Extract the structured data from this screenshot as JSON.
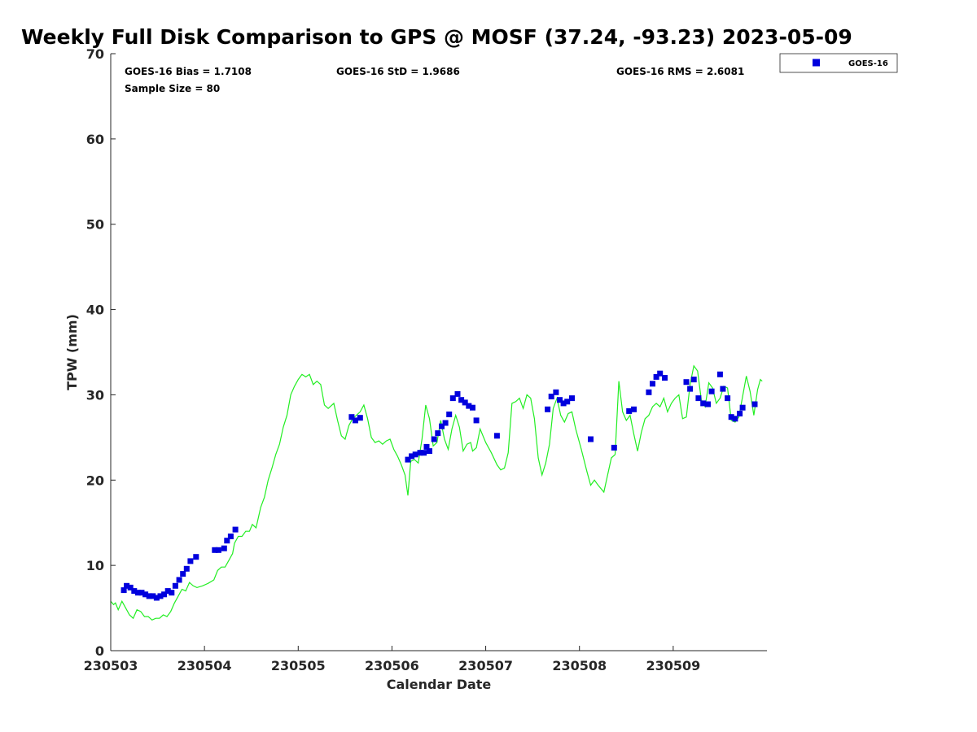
{
  "chart_data": {
    "type": "scatter",
    "title": "Weekly Full Disk Comparison to GPS @ MOSF (37.24, -93.23) 2023-05-09",
    "xlabel": "Calendar Date",
    "ylabel": "TPW (mm)",
    "xlim": [
      230503,
      230510
    ],
    "ylim": [
      0,
      70
    ],
    "x_ticks": [
      230503,
      230504,
      230505,
      230506,
      230507,
      230508,
      230509
    ],
    "x_tick_labels": [
      "230503",
      "230504",
      "230505",
      "230506",
      "230507",
      "230508",
      "230509"
    ],
    "y_ticks": [
      0,
      10,
      20,
      30,
      40,
      50,
      60,
      70
    ],
    "y_tick_labels": [
      "0",
      "10",
      "20",
      "30",
      "40",
      "50",
      "60",
      "70"
    ],
    "grid": false,
    "legend_position": "top-right (outside plot)",
    "stats": {
      "bias": "GOES-16 Bias = 1.7108",
      "std": "GOES-16 StD = 1.9686",
      "rms": "GOES-16 RMS = 2.6081",
      "sample": "Sample Size = 80"
    },
    "colors": {
      "goes": "#0000dd",
      "gps": "#22ee22",
      "axis": "#262626"
    },
    "series": [
      {
        "name": "GOES-16",
        "legend_label": "GOES-16",
        "kind": "scatter",
        "color": "#0000dd",
        "points": [
          [
            230503.14,
            7.1
          ],
          [
            230503.17,
            7.6
          ],
          [
            230503.21,
            7.4
          ],
          [
            230503.25,
            7.0
          ],
          [
            230503.29,
            6.8
          ],
          [
            230503.33,
            6.8
          ],
          [
            230503.37,
            6.6
          ],
          [
            230503.41,
            6.4
          ],
          [
            230503.45,
            6.4
          ],
          [
            230503.49,
            6.2
          ],
          [
            230503.53,
            6.4
          ],
          [
            230503.57,
            6.6
          ],
          [
            230503.61,
            7.0
          ],
          [
            230503.65,
            6.8
          ],
          [
            230503.69,
            7.6
          ],
          [
            230503.73,
            8.3
          ],
          [
            230503.77,
            9.0
          ],
          [
            230503.81,
            9.6
          ],
          [
            230503.85,
            10.5
          ],
          [
            230503.91,
            11.0
          ],
          [
            230504.11,
            11.8
          ],
          [
            230504.15,
            11.8
          ],
          [
            230504.21,
            12.0
          ],
          [
            230504.24,
            12.9
          ],
          [
            230504.28,
            13.4
          ],
          [
            230504.33,
            14.2
          ],
          [
            230505.57,
            27.4
          ],
          [
            230505.61,
            27.0
          ],
          [
            230505.66,
            27.3
          ],
          [
            230506.17,
            22.4
          ],
          [
            230506.21,
            22.8
          ],
          [
            230506.25,
            23.0
          ],
          [
            230506.3,
            23.2
          ],
          [
            230506.34,
            23.2
          ],
          [
            230506.37,
            23.9
          ],
          [
            230506.4,
            23.4
          ],
          [
            230506.45,
            24.8
          ],
          [
            230506.49,
            25.5
          ],
          [
            230506.53,
            26.3
          ],
          [
            230506.57,
            26.7
          ],
          [
            230506.61,
            27.7
          ],
          [
            230506.65,
            29.6
          ],
          [
            230506.7,
            30.1
          ],
          [
            230506.74,
            29.4
          ],
          [
            230506.78,
            29.1
          ],
          [
            230506.82,
            28.7
          ],
          [
            230506.86,
            28.5
          ],
          [
            230506.9,
            27.0
          ],
          [
            230507.12,
            25.2
          ],
          [
            230507.66,
            28.3
          ],
          [
            230507.7,
            29.8
          ],
          [
            230507.75,
            30.3
          ],
          [
            230507.79,
            29.4
          ],
          [
            230507.83,
            29.0
          ],
          [
            230507.87,
            29.2
          ],
          [
            230507.92,
            29.6
          ],
          [
            230508.12,
            24.8
          ],
          [
            230508.37,
            23.8
          ],
          [
            230508.53,
            28.1
          ],
          [
            230508.58,
            28.3
          ],
          [
            230508.74,
            30.3
          ],
          [
            230508.78,
            31.3
          ],
          [
            230508.82,
            32.1
          ],
          [
            230508.86,
            32.5
          ],
          [
            230508.91,
            32.0
          ],
          [
            230509.14,
            31.5
          ],
          [
            230509.18,
            30.7
          ],
          [
            230509.22,
            31.8
          ],
          [
            230509.27,
            29.6
          ],
          [
            230509.32,
            29.0
          ],
          [
            230509.37,
            28.9
          ],
          [
            230509.41,
            30.4
          ],
          [
            230509.5,
            32.4
          ],
          [
            230509.53,
            30.7
          ],
          [
            230509.58,
            29.6
          ],
          [
            230509.62,
            27.4
          ],
          [
            230509.66,
            27.2
          ],
          [
            230509.71,
            27.8
          ],
          [
            230509.74,
            28.5
          ],
          [
            230509.87,
            28.9
          ]
        ]
      },
      {
        "name": "GPS",
        "kind": "line",
        "color": "#22ee22",
        "points": [
          [
            230503.0,
            5.8
          ],
          [
            230503.03,
            5.4
          ],
          [
            230503.05,
            5.6
          ],
          [
            230503.08,
            4.8
          ],
          [
            230503.12,
            5.8
          ],
          [
            230503.16,
            5.0
          ],
          [
            230503.2,
            4.2
          ],
          [
            230503.24,
            3.8
          ],
          [
            230503.28,
            4.8
          ],
          [
            230503.32,
            4.6
          ],
          [
            230503.36,
            4.0
          ],
          [
            230503.4,
            4.0
          ],
          [
            230503.44,
            3.6
          ],
          [
            230503.48,
            3.8
          ],
          [
            230503.52,
            3.8
          ],
          [
            230503.56,
            4.2
          ],
          [
            230503.6,
            4.0
          ],
          [
            230503.64,
            4.6
          ],
          [
            230503.68,
            5.6
          ],
          [
            230503.72,
            6.4
          ],
          [
            230503.76,
            7.2
          ],
          [
            230503.8,
            7.0
          ],
          [
            230503.84,
            8.0
          ],
          [
            230503.88,
            7.6
          ],
          [
            230503.92,
            7.4
          ],
          [
            230503.98,
            7.6
          ],
          [
            230504.04,
            7.9
          ],
          [
            230504.1,
            8.3
          ],
          [
            230504.14,
            9.4
          ],
          [
            230504.18,
            9.8
          ],
          [
            230504.22,
            9.8
          ],
          [
            230504.26,
            10.6
          ],
          [
            230504.3,
            11.4
          ],
          [
            230504.32,
            12.6
          ],
          [
            230504.36,
            13.4
          ],
          [
            230504.4,
            13.4
          ],
          [
            230504.44,
            14.0
          ],
          [
            230504.48,
            14.0
          ],
          [
            230504.51,
            14.8
          ],
          [
            230504.55,
            14.4
          ],
          [
            230504.6,
            16.8
          ],
          [
            230504.64,
            18.0
          ],
          [
            230504.68,
            20.0
          ],
          [
            230504.72,
            21.4
          ],
          [
            230504.76,
            23.0
          ],
          [
            230504.8,
            24.2
          ],
          [
            230504.84,
            26.2
          ],
          [
            230504.88,
            27.6
          ],
          [
            230504.92,
            30.0
          ],
          [
            230504.96,
            31.0
          ],
          [
            230505.0,
            31.8
          ],
          [
            230505.04,
            32.4
          ],
          [
            230505.08,
            32.1
          ],
          [
            230505.12,
            32.4
          ],
          [
            230505.16,
            31.2
          ],
          [
            230505.2,
            31.6
          ],
          [
            230505.24,
            31.2
          ],
          [
            230505.28,
            28.8
          ],
          [
            230505.32,
            28.4
          ],
          [
            230505.38,
            29.0
          ],
          [
            230505.42,
            27.0
          ],
          [
            230505.46,
            25.2
          ],
          [
            230505.5,
            24.8
          ],
          [
            230505.54,
            26.4
          ],
          [
            230505.58,
            27.2
          ],
          [
            230505.62,
            27.6
          ],
          [
            230505.66,
            28.0
          ],
          [
            230505.7,
            28.8
          ],
          [
            230505.74,
            27.2
          ],
          [
            230505.78,
            25.0
          ],
          [
            230505.82,
            24.4
          ],
          [
            230505.86,
            24.6
          ],
          [
            230505.9,
            24.2
          ],
          [
            230505.94,
            24.6
          ],
          [
            230505.98,
            24.8
          ],
          [
            230506.02,
            23.6
          ],
          [
            230506.06,
            22.8
          ],
          [
            230506.1,
            21.8
          ],
          [
            230506.14,
            20.6
          ],
          [
            230506.17,
            18.2
          ],
          [
            230506.2,
            22.2
          ],
          [
            230506.24,
            22.4
          ],
          [
            230506.28,
            22.0
          ],
          [
            230506.32,
            24.8
          ],
          [
            230506.36,
            28.8
          ],
          [
            230506.4,
            27.2
          ],
          [
            230506.44,
            24.0
          ],
          [
            230506.48,
            24.4
          ],
          [
            230506.52,
            27.0
          ],
          [
            230506.56,
            24.8
          ],
          [
            230506.6,
            23.6
          ],
          [
            230506.64,
            26.0
          ],
          [
            230506.68,
            27.6
          ],
          [
            230506.72,
            26.2
          ],
          [
            230506.76,
            23.4
          ],
          [
            230506.8,
            24.2
          ],
          [
            230506.84,
            24.4
          ],
          [
            230506.86,
            23.4
          ],
          [
            230506.9,
            23.8
          ],
          [
            230506.94,
            26.0
          ],
          [
            230507.0,
            24.4
          ],
          [
            230507.06,
            23.2
          ],
          [
            230507.12,
            21.8
          ],
          [
            230507.16,
            21.2
          ],
          [
            230507.2,
            21.4
          ],
          [
            230507.24,
            23.2
          ],
          [
            230507.28,
            29.0
          ],
          [
            230507.32,
            29.2
          ],
          [
            230507.36,
            29.6
          ],
          [
            230507.4,
            28.4
          ],
          [
            230507.44,
            30.0
          ],
          [
            230507.48,
            29.6
          ],
          [
            230507.52,
            27.2
          ],
          [
            230507.56,
            22.6
          ],
          [
            230507.6,
            20.6
          ],
          [
            230507.64,
            22.0
          ],
          [
            230507.68,
            24.2
          ],
          [
            230507.72,
            28.4
          ],
          [
            230507.76,
            29.6
          ],
          [
            230507.8,
            27.6
          ],
          [
            230507.84,
            26.8
          ],
          [
            230507.88,
            27.8
          ],
          [
            230507.92,
            28.0
          ],
          [
            230507.96,
            26.0
          ],
          [
            230508.02,
            23.6
          ],
          [
            230508.08,
            21.0
          ],
          [
            230508.12,
            19.4
          ],
          [
            230508.16,
            20.0
          ],
          [
            230508.2,
            19.4
          ],
          [
            230508.26,
            18.6
          ],
          [
            230508.3,
            20.6
          ],
          [
            230508.34,
            22.6
          ],
          [
            230508.38,
            23.0
          ],
          [
            230508.42,
            31.6
          ],
          [
            230508.46,
            28.0
          ],
          [
            230508.5,
            27.0
          ],
          [
            230508.54,
            27.6
          ],
          [
            230508.58,
            25.4
          ],
          [
            230508.62,
            23.4
          ],
          [
            230508.66,
            25.6
          ],
          [
            230508.7,
            27.2
          ],
          [
            230508.74,
            27.6
          ],
          [
            230508.78,
            28.6
          ],
          [
            230508.82,
            29.0
          ],
          [
            230508.86,
            28.6
          ],
          [
            230508.9,
            29.6
          ],
          [
            230508.94,
            28.0
          ],
          [
            230508.98,
            29.0
          ],
          [
            230509.02,
            29.6
          ],
          [
            230509.06,
            30.0
          ],
          [
            230509.1,
            27.2
          ],
          [
            230509.14,
            27.4
          ],
          [
            230509.18,
            31.2
          ],
          [
            230509.22,
            33.4
          ],
          [
            230509.26,
            32.8
          ],
          [
            230509.3,
            29.4
          ],
          [
            230509.34,
            28.6
          ],
          [
            230509.38,
            31.4
          ],
          [
            230509.42,
            30.8
          ],
          [
            230509.46,
            29.0
          ],
          [
            230509.5,
            29.6
          ],
          [
            230509.54,
            31.0
          ],
          [
            230509.58,
            30.8
          ],
          [
            230509.62,
            27.0
          ],
          [
            230509.66,
            26.8
          ],
          [
            230509.7,
            27.4
          ],
          [
            230509.74,
            29.8
          ],
          [
            230509.78,
            32.2
          ],
          [
            230509.82,
            30.4
          ],
          [
            230509.86,
            27.6
          ],
          [
            230509.9,
            30.6
          ],
          [
            230509.93,
            31.8
          ],
          [
            230509.95,
            31.6
          ]
        ]
      }
    ]
  }
}
